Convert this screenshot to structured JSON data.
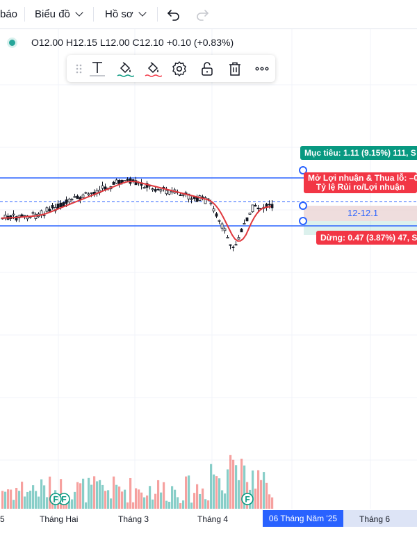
{
  "topbar": {
    "item_partial": "báo",
    "item_chart": "Biểu đồ",
    "item_profile": "Hồ sơ",
    "undo_icon": "undo-icon",
    "redo_icon": "redo-icon"
  },
  "legend": {
    "ohlc": "O12.00  H12.15  L12.00  C12.10  +0.10 (+0.83%)"
  },
  "drawing_toolbar": {
    "icons": [
      "drag-handle-icon",
      "text-icon",
      "fill-color-icon",
      "line-color-icon",
      "settings-icon",
      "unlock-icon",
      "trash-icon",
      "more-icon"
    ]
  },
  "position_tool": {
    "target_label": "Mục tiêu: 1.11 (9.15%) 111, S",
    "pnl_label_line1": "Mở Lợi nhuận & Thua lỗ: –0",
    "pnl_label_line2": "Tỷ lệ Rủi ro/Lợi nhuận",
    "price_label": "12-12.1",
    "stop_label": "Dừng: 0.47 (3.87%) 47, S"
  },
  "time_axis": {
    "labels": [
      "5",
      "Tháng Hai",
      "Tháng 3",
      "Tháng 4",
      "Tháng 6"
    ],
    "current": "06 Tháng Năm '25"
  },
  "markers": [
    "F",
    "F",
    "F"
  ],
  "colors": {
    "up": "#26a69a",
    "down": "#ef5350",
    "ma": "#e0393e",
    "lines": "#2962ff",
    "target": "#089981",
    "stop": "#f23645"
  }
}
